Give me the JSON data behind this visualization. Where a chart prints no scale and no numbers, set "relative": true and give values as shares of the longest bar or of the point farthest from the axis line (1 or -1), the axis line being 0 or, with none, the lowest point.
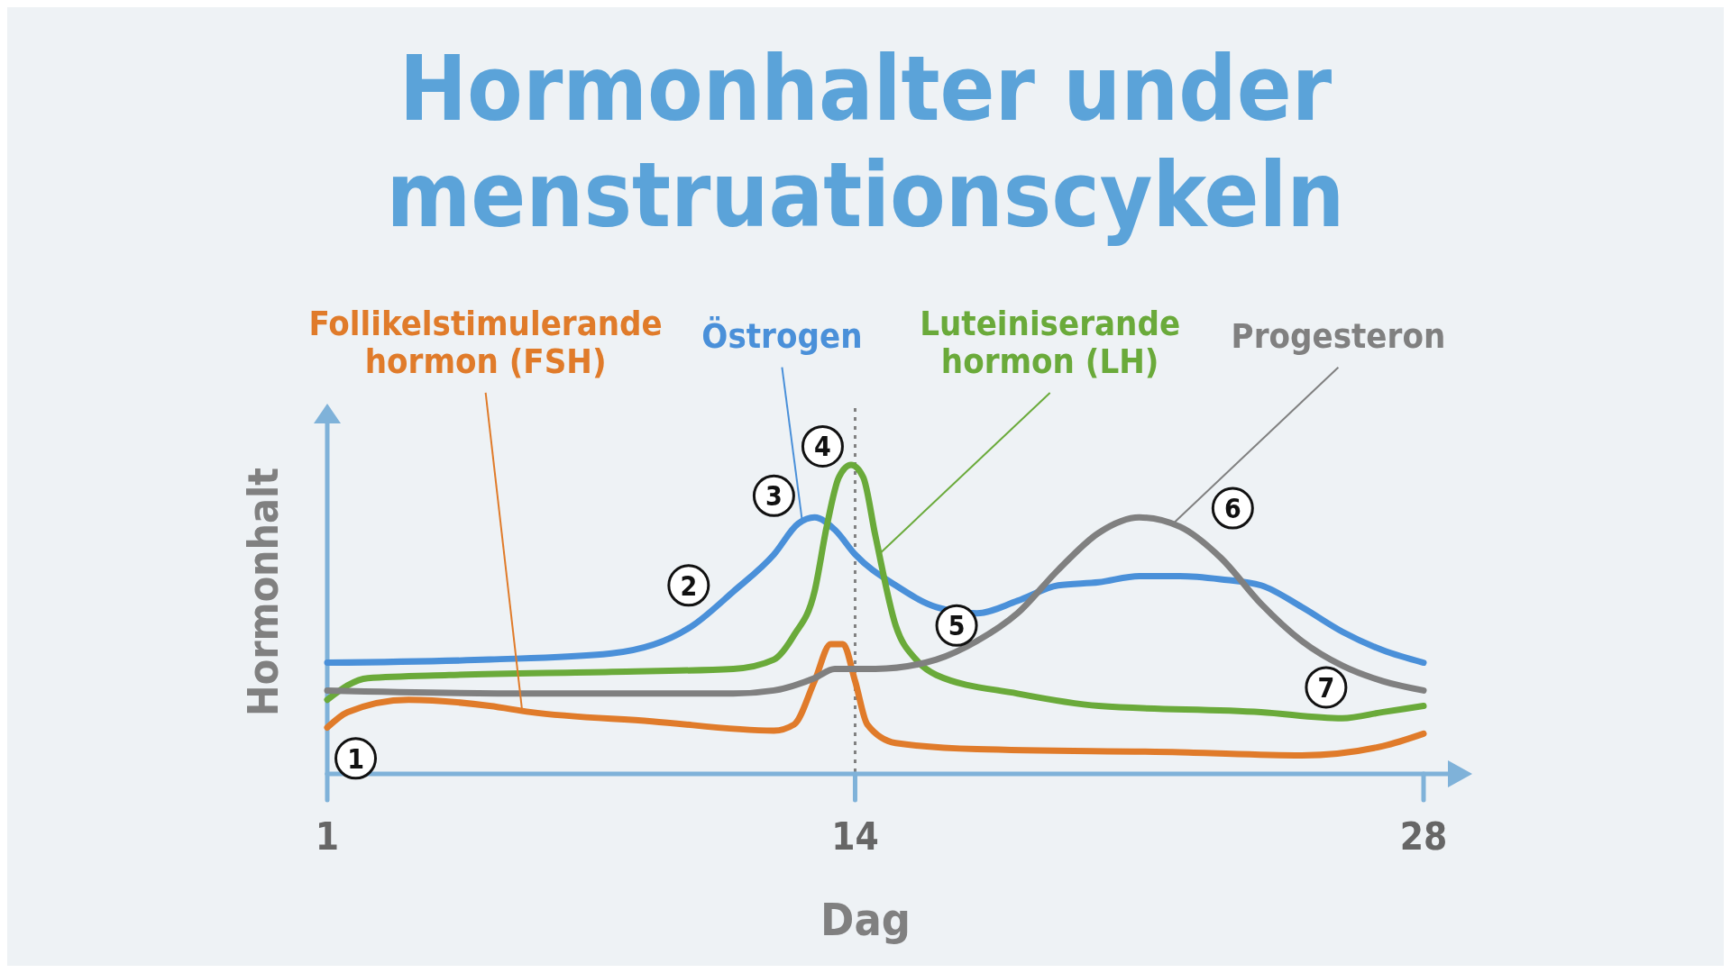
{
  "chart_data": {
    "type": "line",
    "title": "Hormonhalter under menstruationscykeln",
    "xlabel": "Dag",
    "ylabel": "Hormonhalt",
    "relative": true,
    "xlim": [
      1,
      28.6
    ],
    "xticks": [
      1,
      14,
      28
    ],
    "grid": false,
    "marker": "none",
    "line_style": "solid",
    "ref_lines": [
      {
        "axis": "x",
        "value": 14,
        "color": "#808080",
        "line_style": "dotted"
      }
    ],
    "annotations": [
      {
        "text": "1",
        "x": 1.7,
        "y": 0.05
      },
      {
        "text": "2",
        "x": 9.9,
        "y": 0.61
      },
      {
        "text": "3",
        "x": 12,
        "y": 0.9
      },
      {
        "text": "4",
        "x": 13.2,
        "y": 1.06
      },
      {
        "text": "5",
        "x": 16.5,
        "y": 0.48
      },
      {
        "text": "6",
        "x": 23.3,
        "y": 0.86
      },
      {
        "text": "7",
        "x": 25.6,
        "y": 0.28
      }
    ],
    "series": [
      {
        "name": "Follikelstimulerande hormon (FSH)",
        "color": "#e07b2a",
        "x": [
          1,
          1.5,
          3,
          5,
          6,
          9,
          12,
          12.5,
          13,
          13.4,
          13.7,
          14,
          14.3,
          15,
          17,
          22,
          25,
          27,
          28
        ],
        "values": [
          0.15,
          0.2,
          0.24,
          0.22,
          0.2,
          0.17,
          0.14,
          0.16,
          0.3,
          0.42,
          0.42,
          0.3,
          0.16,
          0.1,
          0.08,
          0.07,
          0.06,
          0.09,
          0.13
        ]
      },
      {
        "name": "Östrogen",
        "color": "#4a90d9",
        "x": [
          1,
          5,
          8,
          10,
          11,
          12,
          12.6,
          13,
          13.5,
          14,
          15,
          16,
          17,
          18,
          19,
          20,
          21,
          22,
          23,
          24,
          25,
          26,
          27,
          28
        ],
        "values": [
          0.36,
          0.37,
          0.39,
          0.48,
          0.59,
          0.71,
          0.81,
          0.83,
          0.79,
          0.71,
          0.61,
          0.54,
          0.52,
          0.56,
          0.61,
          0.62,
          0.64,
          0.64,
          0.63,
          0.61,
          0.54,
          0.46,
          0.4,
          0.36
        ]
      },
      {
        "name": "Luteiniserande hormon (LH)",
        "color": "#6aaa3a",
        "x": [
          1,
          2,
          4,
          8,
          11,
          12,
          12.5,
          13,
          13.3,
          13.6,
          13.9,
          14.2,
          14.5,
          15,
          15.5,
          16,
          18,
          20,
          24,
          26,
          27,
          28
        ],
        "values": [
          0.24,
          0.31,
          0.32,
          0.33,
          0.34,
          0.37,
          0.45,
          0.59,
          0.8,
          0.96,
          1,
          0.96,
          0.77,
          0.48,
          0.37,
          0.32,
          0.26,
          0.22,
          0.2,
          0.18,
          0.2,
          0.22
        ]
      },
      {
        "name": "Progesteron",
        "color": "#808080",
        "x": [
          1,
          6,
          11,
          12,
          13,
          13.5,
          14.5,
          16,
          17,
          18,
          19,
          20,
          21,
          22,
          23,
          24,
          25,
          26,
          27,
          28
        ],
        "values": [
          0.27,
          0.26,
          0.26,
          0.27,
          0.31,
          0.34,
          0.34,
          0.37,
          0.43,
          0.52,
          0.66,
          0.78,
          0.83,
          0.8,
          0.7,
          0.55,
          0.43,
          0.35,
          0.3,
          0.27
        ]
      }
    ]
  }
}
